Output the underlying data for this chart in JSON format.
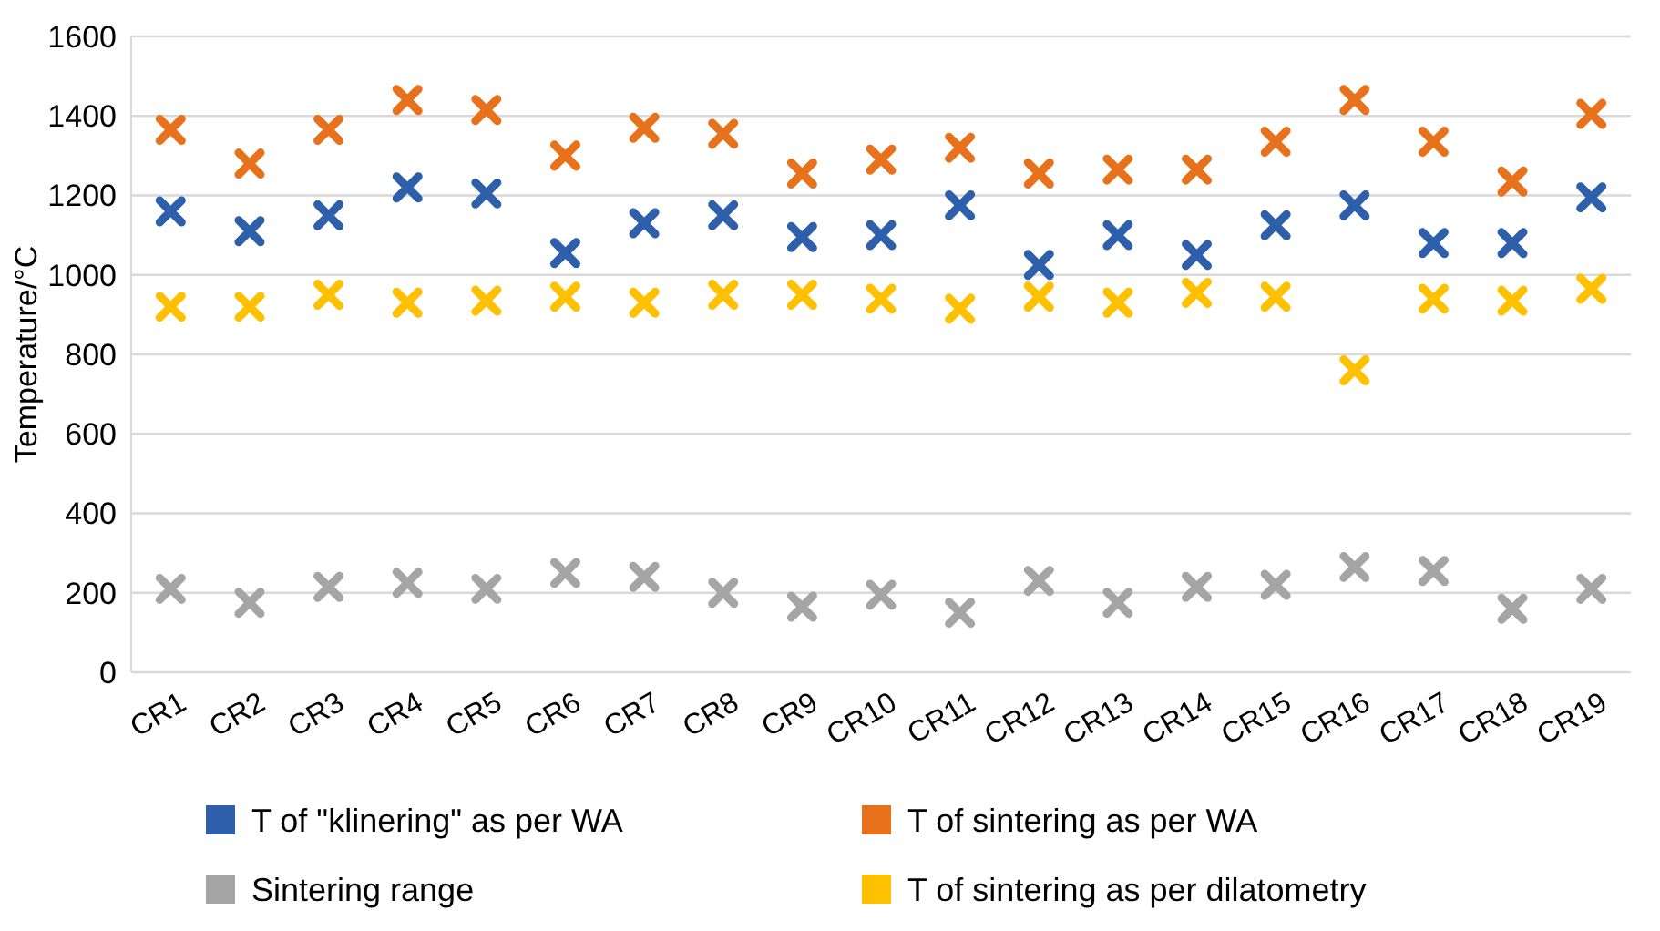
{
  "chart_data": {
    "type": "scatter",
    "ylabel": "Temperature/°C",
    "categories": [
      "CR1",
      "CR2",
      "CR3",
      "CR4",
      "CR5",
      "CR6",
      "CR7",
      "CR8",
      "CR9",
      "CR10",
      "CR11",
      "CR12",
      "CR13",
      "CR14",
      "CR15",
      "CR16",
      "CR17",
      "CR18",
      "CR19"
    ],
    "series": [
      {
        "name": "T of \"klinering\" as per WA",
        "color": "#2e5faa",
        "values": [
          1160,
          1110,
          1150,
          1220,
          1205,
          1055,
          1130,
          1150,
          1095,
          1100,
          1175,
          1025,
          1100,
          1050,
          1125,
          1175,
          1080,
          1080,
          1195
        ]
      },
      {
        "name": "T of sintering as per WA",
        "color": "#e8711c",
        "values": [
          1365,
          1280,
          1365,
          1440,
          1415,
          1300,
          1370,
          1355,
          1255,
          1290,
          1320,
          1255,
          1265,
          1265,
          1335,
          1440,
          1335,
          1235,
          1405
        ]
      },
      {
        "name": "Sintering range",
        "color": "#a5a5a5",
        "values": [
          210,
          175,
          215,
          225,
          210,
          250,
          240,
          200,
          165,
          195,
          150,
          230,
          175,
          215,
          220,
          265,
          255,
          160,
          210
        ]
      },
      {
        "name": "T of sintering as per dilatometry",
        "color": "#ffc000",
        "values": [
          920,
          920,
          950,
          930,
          935,
          945,
          930,
          950,
          950,
          940,
          915,
          945,
          930,
          955,
          945,
          760,
          940,
          935,
          965
        ]
      }
    ],
    "ylim": [
      0,
      1600
    ],
    "yticks": [
      0,
      200,
      400,
      600,
      800,
      1000,
      1200,
      1400,
      1600
    ],
    "grid": "y",
    "legend": "bottom",
    "marker": "cross"
  }
}
